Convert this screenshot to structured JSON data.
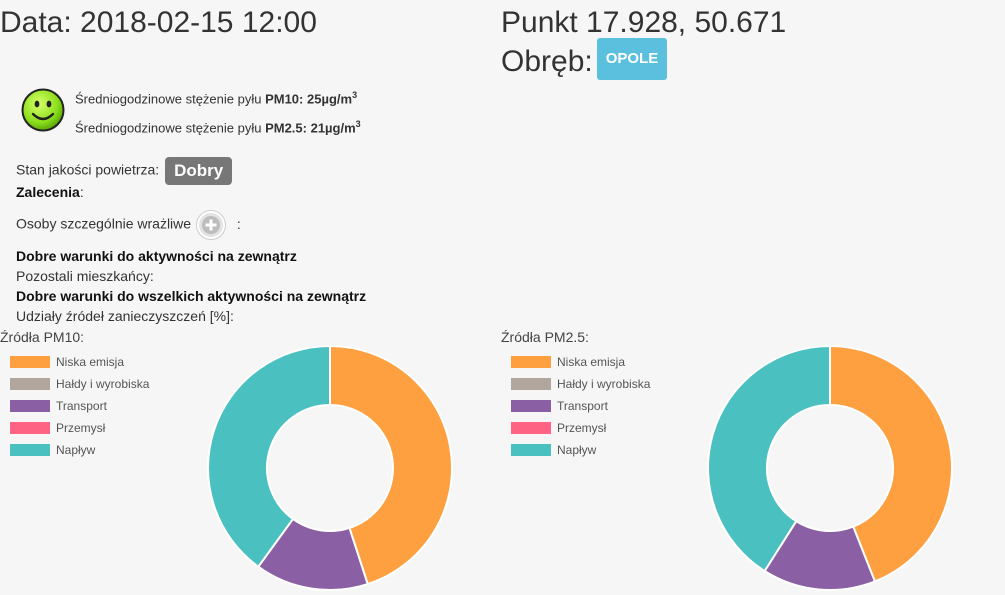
{
  "header": {
    "date_text": "Data: 2018-02-15 12:00",
    "point_text": "Punkt 17.928, 50.671",
    "obreb_label": "Obręb:",
    "obreb_value": "OPOLE"
  },
  "pm": {
    "pm10_prefix": "Średniogodzinowe stężenie pyłu ",
    "pm10_name": "PM10",
    "pm10_value": ": 25µg/m",
    "pm10_sup": "3",
    "pm25_prefix": "Średniogodzinowe stężenie pyłu ",
    "pm25_name": "PM2.5",
    "pm25_value": ": 21µg/m",
    "pm25_sup": "3"
  },
  "quality": {
    "label": "Stan jakości powietrza:",
    "badge": "Dobry",
    "recommendations_label": "Zalecenia",
    "recommendations_colon": ":",
    "sensitive_label": "Osoby szczególnie wrażliwe",
    "sensitive_colon": ":",
    "sensitive_text": "Dobre warunki do aktywności na zewnątrz",
    "others_label": "Pozostali mieszkańcy:",
    "others_text": "Dobre warunki do wszelkich aktywności na zewnątrz",
    "shares_label": "Udziały źródeł zanieczyszczeń [%]:"
  },
  "colors": {
    "niska_emisja": "#ffa040",
    "haldy": "#b0a69c",
    "transport": "#8b5fa3",
    "przemysl": "#ff6384",
    "naplyw": "#4bc0c0"
  },
  "chart_data": [
    {
      "type": "pie",
      "title": "Źródła PM10:",
      "categories": [
        "Niska emisja",
        "Hałdy i wyrobiska",
        "Transport",
        "Przemysł",
        "Napływ"
      ],
      "values": [
        45,
        0,
        15,
        0,
        40
      ],
      "colors": [
        "#ffa040",
        "#b0a69c",
        "#8b5fa3",
        "#ff6384",
        "#4bc0c0"
      ],
      "legend_position": "top-left"
    },
    {
      "type": "pie",
      "title": "Źródła PM2.5:",
      "categories": [
        "Niska emisja",
        "Hałdy i wyrobiska",
        "Transport",
        "Przemysł",
        "Napływ"
      ],
      "values": [
        44,
        0,
        15,
        0,
        41
      ],
      "colors": [
        "#ffa040",
        "#b0a69c",
        "#8b5fa3",
        "#ff6384",
        "#4bc0c0"
      ],
      "legend_position": "top-left"
    }
  ]
}
